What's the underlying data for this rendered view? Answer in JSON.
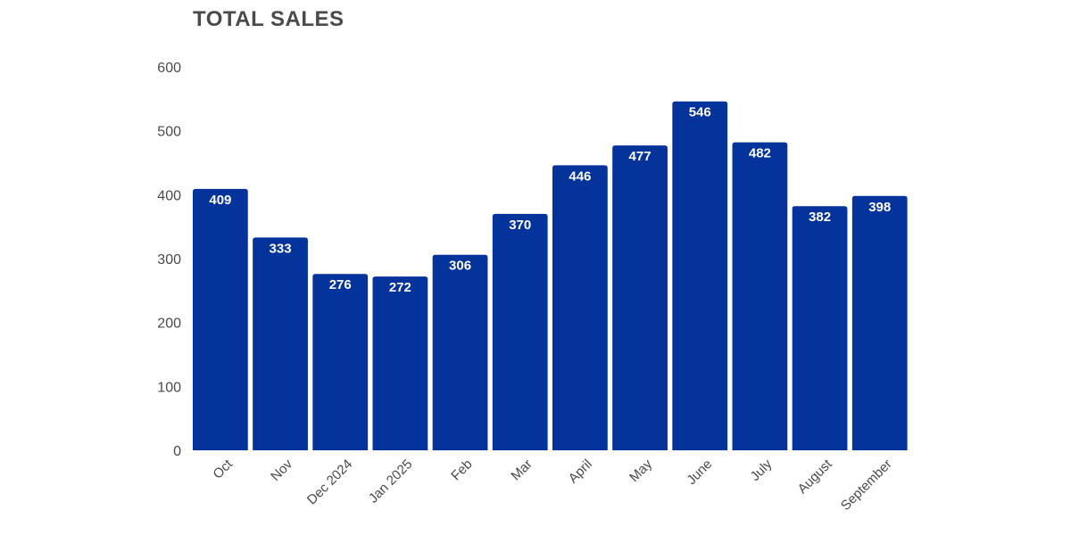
{
  "chart_data": {
    "type": "bar",
    "title": "TOTAL SALES",
    "categories": [
      "Oct",
      "Nov",
      "Dec 2024",
      "Jan 2025",
      "Feb",
      "Mar",
      "April",
      "May",
      "June",
      "July",
      "August",
      "September"
    ],
    "values": [
      409,
      333,
      276,
      272,
      306,
      370,
      446,
      477,
      546,
      482,
      382,
      398
    ],
    "yticks": [
      0,
      100,
      200,
      300,
      400,
      500,
      600
    ],
    "ylim": [
      0,
      600
    ],
    "xlabel": "",
    "ylabel": "",
    "grid": false,
    "bar_color": "#05339c",
    "data_label_color": "#ffffff"
  }
}
